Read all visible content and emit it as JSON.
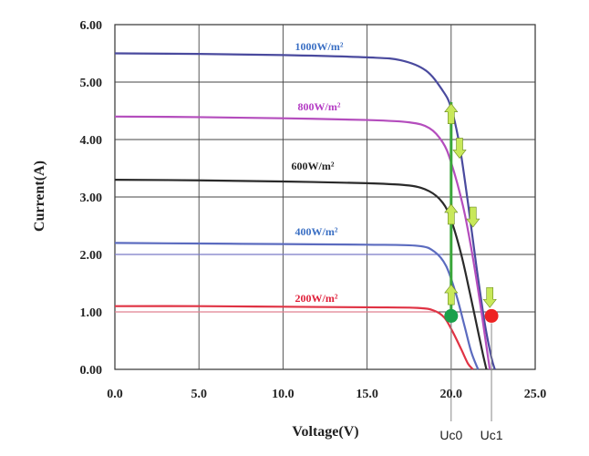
{
  "chart_data": {
    "type": "line",
    "xlabel": "Voltage(V)",
    "ylabel": "Current(A)",
    "xlim": [
      0,
      25
    ],
    "ylim": [
      0,
      6
    ],
    "xticks": [
      "0.0",
      "5.0",
      "10.0",
      "15.0",
      "20.0",
      "25.0"
    ],
    "yticks": [
      "0.00",
      "1.00",
      "2.00",
      "3.00",
      "4.00",
      "5.00",
      "6.00"
    ],
    "grid": true,
    "series": [
      {
        "name": "1000W/m²",
        "color": "#4a4a9e",
        "label_color": "#3a6fc4",
        "x": [
          0,
          5,
          10,
          15,
          17,
          18.5,
          19.5,
          20,
          20.5,
          21,
          21.5,
          22,
          22.4,
          22.6
        ],
        "y": [
          5.5,
          5.49,
          5.47,
          5.43,
          5.38,
          5.2,
          4.85,
          4.55,
          3.9,
          2.9,
          1.8,
          0.8,
          0.2,
          0.0
        ]
      },
      {
        "name": "800W/m²",
        "color": "#b44dbd",
        "label_color": "#b43cc4",
        "x": [
          0,
          5,
          10,
          15,
          17.5,
          18.7,
          19.5,
          20,
          20.7,
          21.2,
          21.7,
          22.1,
          22.3
        ],
        "y": [
          4.4,
          4.39,
          4.37,
          4.34,
          4.3,
          4.2,
          3.95,
          3.6,
          2.85,
          2.1,
          1.2,
          0.4,
          0.0
        ]
      },
      {
        "name": "600W/m²",
        "color": "#2a2a2a",
        "label_color": "#222222",
        "x": [
          0,
          5,
          10,
          15,
          17.5,
          18.7,
          19.5,
          20,
          20.6,
          21.1,
          21.5,
          21.9,
          22.1
        ],
        "y": [
          3.3,
          3.29,
          3.27,
          3.24,
          3.2,
          3.1,
          2.9,
          2.6,
          2.0,
          1.35,
          0.8,
          0.25,
          0.0
        ]
      },
      {
        "name": "400W/m²",
        "color": "#5b6bbf",
        "label_color": "#3a6fc4",
        "x": [
          0,
          5,
          10,
          15,
          18,
          19,
          19.7,
          20.3,
          20.8,
          21.2,
          21.6
        ],
        "y": [
          2.2,
          2.19,
          2.18,
          2.17,
          2.15,
          2.05,
          1.8,
          1.3,
          0.75,
          0.3,
          0.0
        ]
      },
      {
        "name": "200W/m²",
        "color": "#e03344",
        "label_color": "#e0203a",
        "x": [
          0,
          5,
          10,
          15,
          18,
          19,
          19.6,
          20.1,
          20.6,
          21.0,
          21.3
        ],
        "y": [
          1.1,
          1.1,
          1.09,
          1.08,
          1.07,
          1.02,
          0.9,
          0.65,
          0.35,
          0.1,
          0.0
        ]
      }
    ],
    "annotations": {
      "operating_line": {
        "x": 20.0,
        "y_from": 0.93,
        "y_to": 4.65,
        "color": "#3aa63a"
      },
      "markers": [
        {
          "label": "Uc0",
          "x": 20.0,
          "y": 0.93,
          "color": "#1aa04a"
        },
        {
          "label": "Uc1",
          "x": 22.4,
          "y": 0.93,
          "color": "#ee2222"
        }
      ],
      "arrow_color": "#c8e85a",
      "up_arrows": [
        {
          "x": 20.0,
          "y": 1.3
        },
        {
          "x": 20.0,
          "y": 2.7
        },
        {
          "x": 20.0,
          "y": 4.45
        }
      ],
      "down_arrows": [
        {
          "x": 20.5,
          "y": 3.85
        },
        {
          "x": 21.3,
          "y": 2.65
        },
        {
          "x": 22.3,
          "y": 1.25
        }
      ],
      "extra_reference_lines": [
        {
          "y": 2.0,
          "x_to": 19.5,
          "color": "#7a7ac8"
        },
        {
          "y": 1.0,
          "x_to": 19.0,
          "color": "#e08090"
        }
      ]
    }
  }
}
